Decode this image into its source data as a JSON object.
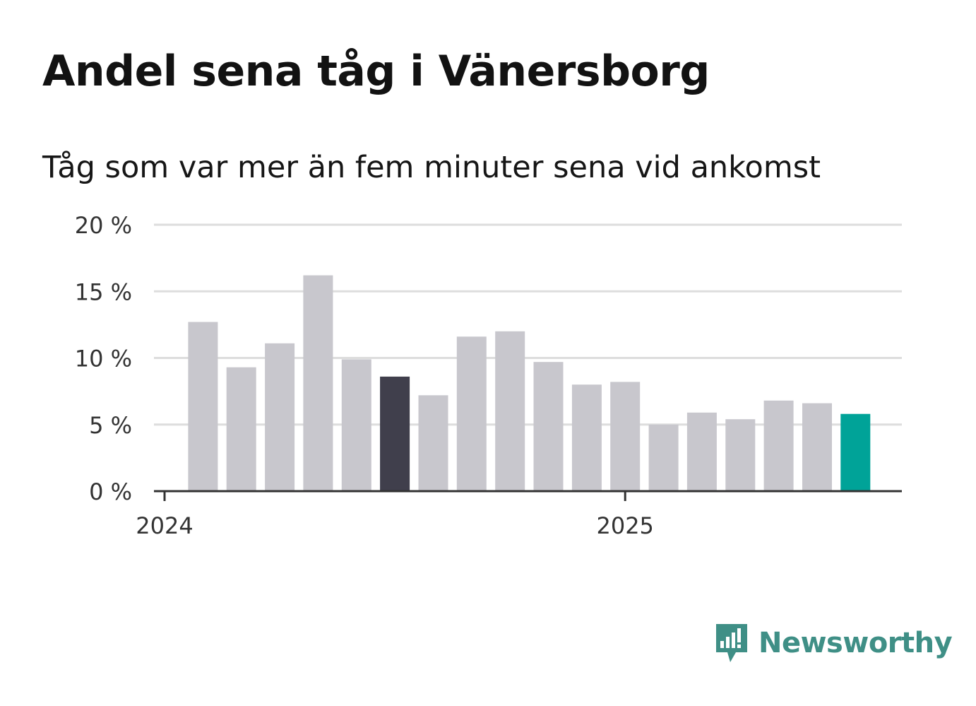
{
  "title": "Andel sena tåg i Vänersborg",
  "subtitle": "Tåg som var mer än fem minuter sena vid ankomst",
  "brand": {
    "name": "Newsworthy",
    "icon": "newsworthy-bar-chart-speech-bubble-icon",
    "color": "#3f8f86"
  },
  "chart_data": {
    "type": "bar",
    "title": "Andel sena tåg i Vänersborg",
    "subtitle": "Tåg som var mer än fem minuter sena vid ankomst",
    "y_unit": "%",
    "ylim": [
      0,
      20
    ],
    "y_ticks": [
      {
        "value": 0,
        "label": "0 %"
      },
      {
        "value": 5,
        "label": "5 %"
      },
      {
        "value": 10,
        "label": "10 %"
      },
      {
        "value": 15,
        "label": "15 %"
      },
      {
        "value": 20,
        "label": "20 %"
      }
    ],
    "x_ticks": [
      {
        "date": "2024-01",
        "label": "2024"
      },
      {
        "date": "2025-01",
        "label": "2025"
      }
    ],
    "grid": true,
    "categories": [
      "2024-02",
      "2024-03",
      "2024-04",
      "2024-05",
      "2024-06",
      "2024-07",
      "2024-08",
      "2024-09",
      "2024-10",
      "2024-11",
      "2024-12",
      "2025-01",
      "2025-02",
      "2025-03",
      "2025-04",
      "2025-05",
      "2025-06",
      "2025-07"
    ],
    "values": [
      12.7,
      9.3,
      11.1,
      16.2,
      9.9,
      8.6,
      7.2,
      11.6,
      12.0,
      9.7,
      8.0,
      8.2,
      5.0,
      5.9,
      5.4,
      6.8,
      6.6,
      5.8
    ],
    "colors": {
      "default": "#c8c7cd",
      "highlight_previous_year": "#403f4c",
      "highlight_latest": "#00a398",
      "grid": "#dddddd",
      "axis": "#333333"
    },
    "highlight_previous_year_category": "2024-07",
    "highlight_latest_category": "2025-07"
  }
}
